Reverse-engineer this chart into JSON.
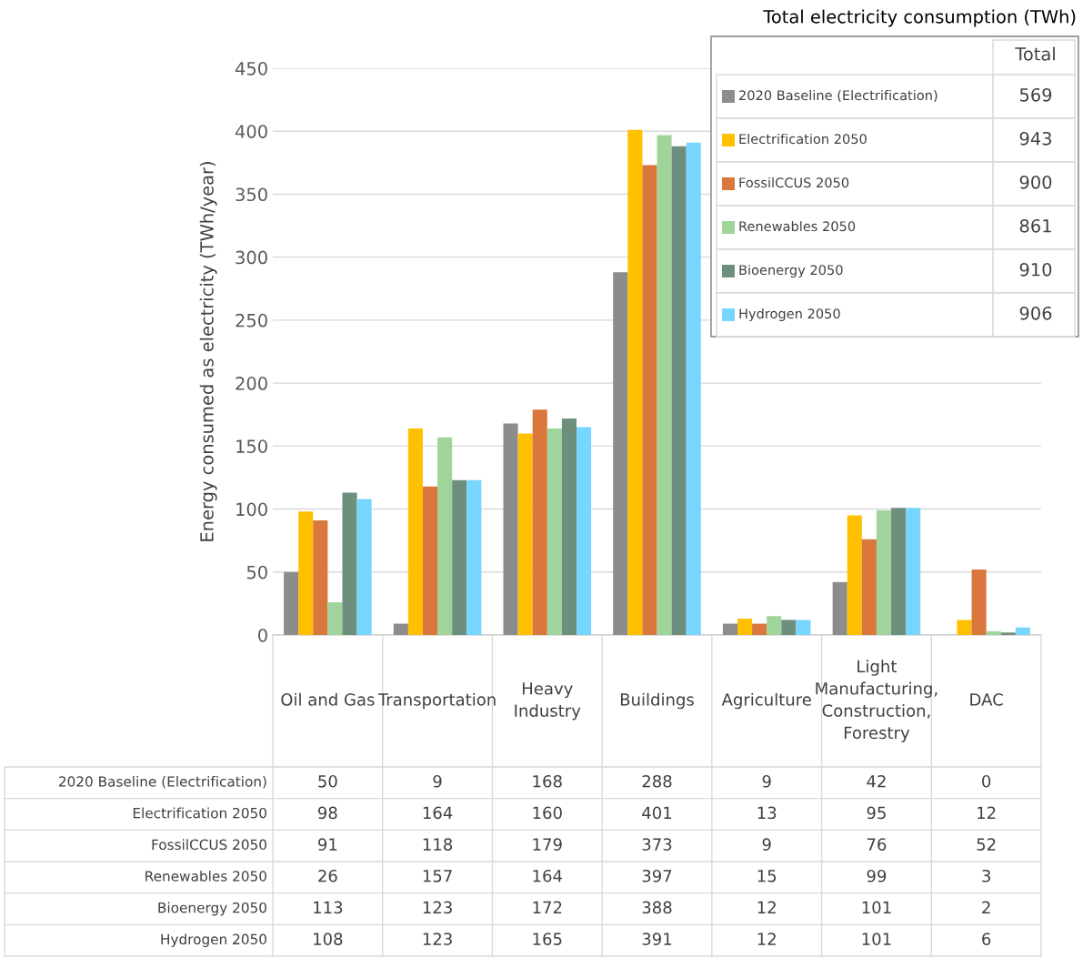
{
  "chart_data": {
    "type": "bar",
    "categories": [
      "Oil and Gas",
      "Transportation",
      "Heavy\nIndustry",
      "Buildings",
      "Agriculture",
      "Light\nManufacturing,\nConstruction,\nForestry",
      "DAC"
    ],
    "ylabel": "Energy consumed as electricity (TWh/year)",
    "ylim": [
      0,
      450
    ],
    "yticks": [
      0,
      50,
      100,
      150,
      200,
      250,
      300,
      350,
      400,
      450
    ],
    "grid": "y",
    "legend": "top right",
    "data_labels": true,
    "legend_title": "Total electricity consumption (TWh)",
    "annotations": [
      "Total",
      "569",
      "943",
      "900",
      "861",
      "910",
      "906"
    ],
    "series": [
      {
        "name": "2020 Baseline (Electrification)",
        "color": "#8c8c8c",
        "values": [
          50,
          9,
          168,
          288,
          9,
          42,
          0
        ]
      },
      {
        "name": "Electrification 2050",
        "color": "#ffc000",
        "values": [
          98,
          164,
          160,
          401,
          13,
          95,
          12
        ]
      },
      {
        "name": "FossilCCUS 2050",
        "color": "#d9773c",
        "values": [
          91,
          118,
          179,
          373,
          9,
          76,
          52
        ]
      },
      {
        "name": "Renewables 2050",
        "color": "#9fd49a",
        "values": [
          26,
          157,
          164,
          397,
          15,
          99,
          3
        ]
      },
      {
        "name": "Bioenergy 2050",
        "color": "#6e8f7e",
        "values": [
          113,
          123,
          172,
          388,
          12,
          101,
          2
        ]
      },
      {
        "name": "Hydrogen 2050",
        "color": "#76d6ff",
        "values": [
          108,
          123,
          165,
          391,
          12,
          101,
          6
        ]
      }
    ]
  }
}
